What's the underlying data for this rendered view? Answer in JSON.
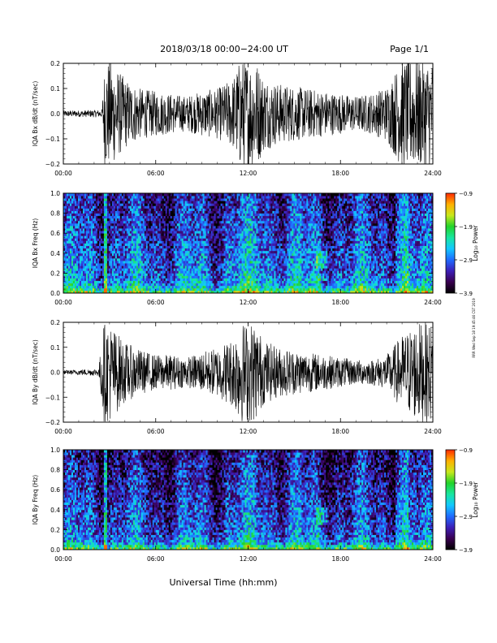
{
  "header": {
    "title": "2018/03/18  00:00−24:00 UT",
    "page": "Page 1/1"
  },
  "footer": {
    "xlabel": "Universal Time (hh:mm)"
  },
  "side_stamp": "RRR Wed Sep 18 19:45:46 CST 2019",
  "colors": {
    "trace": "#000000",
    "colormap": [
      "#000000",
      "#3a0050",
      "#3d1fb8",
      "#1f6bff",
      "#12c8ff",
      "#18e6a0",
      "#22d32a",
      "#c8e81c",
      "#ffb000",
      "#ff2a00"
    ]
  },
  "chart_data": [
    {
      "type": "line",
      "ylabel": "IQA Bx dB/dt (nT/sec)",
      "xlim": [
        0,
        24
      ],
      "ylim": [
        -0.2,
        0.2
      ],
      "yticks": [
        -0.2,
        -0.1,
        0.0,
        0.1,
        0.2
      ],
      "ytick_labels": [
        "−0.2",
        "−0.1",
        "0.0",
        "0.1",
        "0.2"
      ],
      "xtick_labels": [
        "00:00",
        "06:00",
        "12:00",
        "18:00",
        "24:00"
      ],
      "xticks": [
        0,
        6,
        12,
        18,
        24
      ],
      "amplitude_envelope": {
        "hours": [
          0,
          2.5,
          2.7,
          3.0,
          4.0,
          5.0,
          6.0,
          7.0,
          8.0,
          9.0,
          10.0,
          11.0,
          11.5,
          12.0,
          12.5,
          13.0,
          14.0,
          15.0,
          16.0,
          17.0,
          18.0,
          19.0,
          20.0,
          21.0,
          22.0,
          23.0,
          24.0
        ],
        "amplitude": [
          0.012,
          0.015,
          0.22,
          0.22,
          0.14,
          0.1,
          0.09,
          0.08,
          0.07,
          0.09,
          0.1,
          0.14,
          0.22,
          0.22,
          0.22,
          0.15,
          0.12,
          0.11,
          0.1,
          0.09,
          0.08,
          0.07,
          0.08,
          0.11,
          0.22,
          0.22,
          0.22
        ]
      }
    },
    {
      "type": "heatmap",
      "ylabel": "IQA Bx Freq (Hz)",
      "xlim": [
        0,
        24
      ],
      "ylim": [
        0.0,
        1.0
      ],
      "yticks": [
        0.0,
        0.2,
        0.4,
        0.6,
        0.8,
        1.0
      ],
      "ytick_labels": [
        "0.0",
        "0.2",
        "0.4",
        "0.6",
        "0.8",
        "1.0"
      ],
      "xtick_labels": [
        "00:00",
        "06:00",
        "12:00",
        "18:00",
        "24:00"
      ],
      "xticks": [
        0,
        6,
        12,
        18,
        24
      ],
      "colorbar": {
        "label": "Log₁₀ Power",
        "range": [
          -3.9,
          -0.9
        ],
        "ticks": [
          -0.9,
          -1.9,
          -2.9,
          -3.9
        ],
        "tick_labels": [
          "−0.9",
          "−1.9",
          "−2.9",
          "−3.9"
        ]
      }
    },
    {
      "type": "line",
      "ylabel": "IQA By dB/dt (nT/sec)",
      "xlim": [
        0,
        24
      ],
      "ylim": [
        -0.2,
        0.2
      ],
      "yticks": [
        -0.2,
        -0.1,
        0.0,
        0.1,
        0.2
      ],
      "ytick_labels": [
        "−0.2",
        "−0.1",
        "0.0",
        "0.1",
        "0.2"
      ],
      "xtick_labels": [
        "00:00",
        "06:00",
        "12:00",
        "18:00",
        "24:00"
      ],
      "xticks": [
        0,
        6,
        12,
        18,
        24
      ],
      "amplitude_envelope": {
        "hours": [
          0,
          2.3,
          2.6,
          3.0,
          4.0,
          5.0,
          6.0,
          7.0,
          8.0,
          9.0,
          10.0,
          11.0,
          11.5,
          12.0,
          12.5,
          13.0,
          14.0,
          15.0,
          16.0,
          17.0,
          18.0,
          19.0,
          20.0,
          21.0,
          22.0,
          23.0,
          24.0
        ],
        "amplitude": [
          0.008,
          0.015,
          0.2,
          0.2,
          0.12,
          0.09,
          0.07,
          0.07,
          0.06,
          0.08,
          0.1,
          0.14,
          0.2,
          0.2,
          0.2,
          0.13,
          0.1,
          0.09,
          0.08,
          0.07,
          0.06,
          0.05,
          0.05,
          0.07,
          0.15,
          0.2,
          0.2
        ]
      }
    },
    {
      "type": "heatmap",
      "ylabel": "IQA By Freq (Hz)",
      "xlim": [
        0,
        24
      ],
      "ylim": [
        0.0,
        1.0
      ],
      "yticks": [
        0.0,
        0.2,
        0.4,
        0.6,
        0.8,
        1.0
      ],
      "ytick_labels": [
        "0.0",
        "0.2",
        "0.4",
        "0.6",
        "0.8",
        "1.0"
      ],
      "xtick_labels": [
        "00:00",
        "06:00",
        "12:00",
        "18:00",
        "24:00"
      ],
      "xticks": [
        0,
        6,
        12,
        18,
        24
      ],
      "colorbar": {
        "label": "Log₁₀ Power",
        "range": [
          -3.9,
          -0.9
        ],
        "ticks": [
          -0.9,
          -1.9,
          -2.9,
          -3.9
        ],
        "tick_labels": [
          "−0.9",
          "−1.9",
          "−2.9",
          "−3.9"
        ]
      }
    }
  ]
}
